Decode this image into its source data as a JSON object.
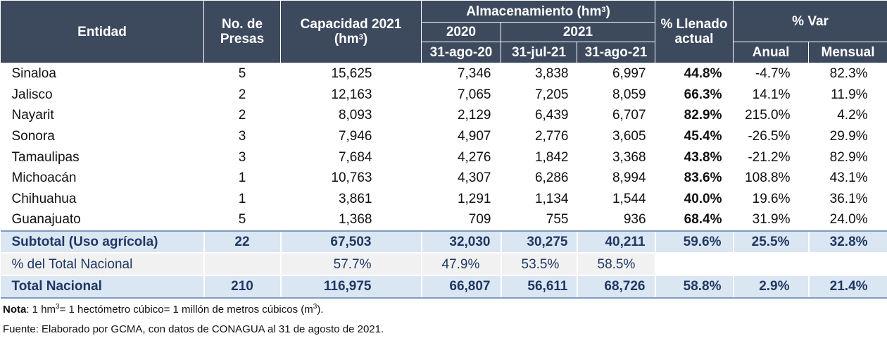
{
  "header": {
    "entidad": "Entidad",
    "presas_line1": "No. de",
    "presas_line2": "Presas",
    "capacidad_line1": "Capacidad 2021",
    "capacidad_unit": "(hm",
    "capacidad_sup": "3",
    "capacidad_close": ")",
    "almac_label": "Almacenamiento (hm",
    "almac_sup": "3",
    "almac_close": ")",
    "year_2020": "2020",
    "year_2021": "2021",
    "date_2020": "31-ago-20",
    "date_jul21": "31-jul-21",
    "date_ago21": "31-ago-21",
    "llenado_line1": "% Llenado",
    "llenado_line2": "actual",
    "var_label": "% Var",
    "anual": "Anual",
    "mensual": "Mensual"
  },
  "rows": [
    {
      "entidad": "Sinaloa",
      "presas": "5",
      "capacidad": "15,625",
      "a2020": "7,346",
      "jul21": "3,838",
      "ago21": "6,997",
      "llenado": "44.8%",
      "anual": "-4.7%",
      "mensual": "82.3%"
    },
    {
      "entidad": "Jalisco",
      "presas": "2",
      "capacidad": "12,163",
      "a2020": "7,065",
      "jul21": "7,205",
      "ago21": "8,059",
      "llenado": "66.3%",
      "anual": "14.1%",
      "mensual": "11.9%"
    },
    {
      "entidad": "Nayarit",
      "presas": "2",
      "capacidad": "8,093",
      "a2020": "2,129",
      "jul21": "6,439",
      "ago21": "6,707",
      "llenado": "82.9%",
      "anual": "215.0%",
      "mensual": "4.2%"
    },
    {
      "entidad": "Sonora",
      "presas": "3",
      "capacidad": "7,946",
      "a2020": "4,907",
      "jul21": "2,776",
      "ago21": "3,605",
      "llenado": "45.4%",
      "anual": "-26.5%",
      "mensual": "29.9%"
    },
    {
      "entidad": "Tamaulipas",
      "presas": "3",
      "capacidad": "7,684",
      "a2020": "4,276",
      "jul21": "1,842",
      "ago21": "3,368",
      "llenado": "43.8%",
      "anual": "-21.2%",
      "mensual": "82.9%"
    },
    {
      "entidad": "Michoacán",
      "presas": "1",
      "capacidad": "10,763",
      "a2020": "4,307",
      "jul21": "6,286",
      "ago21": "8,994",
      "llenado": "83.6%",
      "anual": "108.8%",
      "mensual": "43.1%"
    },
    {
      "entidad": "Chihuahua",
      "presas": "1",
      "capacidad": "3,861",
      "a2020": "1,291",
      "jul21": "1,134",
      "ago21": "1,544",
      "llenado": "40.0%",
      "anual": "19.6%",
      "mensual": "36.1%"
    },
    {
      "entidad": "Guanajuato",
      "presas": "5",
      "capacidad": "1,368",
      "a2020": "709",
      "jul21": "755",
      "ago21": "936",
      "llenado": "68.4%",
      "anual": "31.9%",
      "mensual": "24.0%"
    }
  ],
  "subtotal": {
    "entidad": "Subtotal (Uso agrícola)",
    "presas": "22",
    "capacidad": "67,503",
    "a2020": "32,030",
    "jul21": "30,275",
    "ago21": "40,211",
    "llenado": "59.6%",
    "anual": "25.5%",
    "mensual": "32.8%"
  },
  "pct_total": {
    "entidad": "% del Total Nacional",
    "capacidad": "57.7%",
    "a2020": "47.9%",
    "jul21": "53.5%",
    "ago21": "58.5%"
  },
  "total": {
    "entidad": "Total Nacional",
    "presas": "210",
    "capacidad": "116,975",
    "a2020": "66,807",
    "jul21": "56,611",
    "ago21": "68,726",
    "llenado": "58.8%",
    "anual": "2.9%",
    "mensual": "21.4%"
  },
  "footer": {
    "note_label": "Nota",
    "note_a": ": 1 hm",
    "note_sup1": "3",
    "note_b": "= 1 hectómetro cúbico= 1 millón de metros cúbicos (m",
    "note_sup2": "3",
    "note_c": ").",
    "source": "Fuente: Elaborado por GCMA, con datos de CONAGUA al 31 de agosto de 2021."
  }
}
